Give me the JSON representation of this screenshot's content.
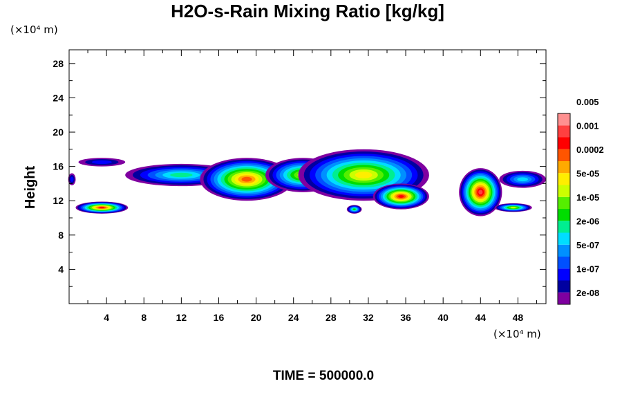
{
  "chart_data": {
    "type": "heatmap",
    "title": "H2O-s-Rain Mixing Ratio [kg/kg]",
    "xlabel": "",
    "ylabel": "Height",
    "x_unit": "(×10⁴ m)",
    "y_unit": "(×10⁴ m)",
    "xlim": [
      0,
      51
    ],
    "ylim": [
      0,
      29.6
    ],
    "x_ticks": [
      4,
      8,
      12,
      16,
      20,
      24,
      28,
      32,
      36,
      40,
      44,
      48
    ],
    "y_ticks": [
      4,
      8,
      12,
      16,
      20,
      24,
      28
    ],
    "colorbar": {
      "colors": [
        "#7f00a0",
        "#0000a0",
        "#0000ff",
        "#0050ff",
        "#0090ff",
        "#00ddff",
        "#00ee90",
        "#00dd00",
        "#55ee00",
        "#ccff00",
        "#ffee00",
        "#ffaa00",
        "#ff5500",
        "#ff0000",
        "#ff4040",
        "#ff9090"
      ],
      "labels": [
        "2e-08",
        "1e-07",
        "5e-07",
        "2e-06",
        "1e-05",
        "5e-05",
        "0.0002",
        "0.001",
        "0.005"
      ]
    },
    "footer": "TIME = 500000.0",
    "cloud_regions": [
      {
        "x": 3.5,
        "y": 11.2,
        "rx": 2.8,
        "ry": 0.7,
        "peak": 13
      },
      {
        "x": 3.5,
        "y": 16.5,
        "rx": 2.5,
        "ry": 0.5,
        "peak": 2
      },
      {
        "x": 0.3,
        "y": 14.5,
        "rx": 0.4,
        "ry": 0.7,
        "peak": 2
      },
      {
        "x": 12,
        "y": 15.0,
        "rx": 6,
        "ry": 1.3,
        "peak": 6
      },
      {
        "x": 19,
        "y": 14.5,
        "rx": 5,
        "ry": 2.5,
        "peak": 12
      },
      {
        "x": 25,
        "y": 15.0,
        "rx": 4,
        "ry": 2.0,
        "peak": 9
      },
      {
        "x": 31.5,
        "y": 15.0,
        "rx": 7,
        "ry": 3.0,
        "peak": 10
      },
      {
        "x": 35.5,
        "y": 12.5,
        "rx": 3,
        "ry": 1.5,
        "peak": 13
      },
      {
        "x": 30.5,
        "y": 11.0,
        "rx": 0.8,
        "ry": 0.5,
        "peak": 7
      },
      {
        "x": 44,
        "y": 13.0,
        "rx": 2.3,
        "ry": 2.8,
        "peak": 14
      },
      {
        "x": 47.5,
        "y": 11.2,
        "rx": 2.0,
        "ry": 0.5,
        "peak": 9
      },
      {
        "x": 48.5,
        "y": 14.5,
        "rx": 2.5,
        "ry": 1.0,
        "peak": 5
      }
    ]
  }
}
